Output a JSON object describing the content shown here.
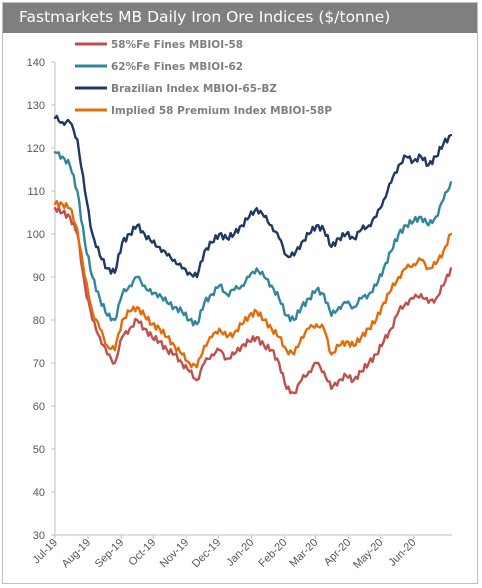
{
  "chart_data": {
    "type": "line",
    "title": "Fastmarkets MB Daily Iron Ore Indices ($/tonne)",
    "xlabel": "",
    "ylabel": "",
    "ylim": [
      30,
      140
    ],
    "yticks": [
      30,
      40,
      50,
      60,
      70,
      80,
      90,
      100,
      110,
      120,
      130,
      140
    ],
    "xlim": [
      "2019-07-01",
      "2020-07-07"
    ],
    "xticks": [
      {
        "date": "2019-07-01",
        "label": "Jul-19"
      },
      {
        "date": "2019-08-01",
        "label": "Aug-19"
      },
      {
        "date": "2019-09-01",
        "label": "Sep-19"
      },
      {
        "date": "2019-10-01",
        "label": "Oct-19"
      },
      {
        "date": "2019-11-01",
        "label": "Nov-19"
      },
      {
        "date": "2019-12-01",
        "label": "Dec-19"
      },
      {
        "date": "2020-01-01",
        "label": "Jan-20"
      },
      {
        "date": "2020-02-01",
        "label": "Feb-20"
      },
      {
        "date": "2020-03-01",
        "label": "Mar-20"
      },
      {
        "date": "2020-04-01",
        "label": "Apr-20"
      },
      {
        "date": "2020-05-01",
        "label": "May-20"
      },
      {
        "date": "2020-06-01",
        "label": "Jun-20"
      }
    ],
    "grid": false,
    "legend_position": "top-left",
    "x": [
      "2019-07-01",
      "2019-07-08",
      "2019-07-15",
      "2019-07-22",
      "2019-07-29",
      "2019-08-05",
      "2019-08-12",
      "2019-08-19",
      "2019-08-26",
      "2019-09-02",
      "2019-09-09",
      "2019-09-16",
      "2019-09-23",
      "2019-09-30",
      "2019-10-07",
      "2019-10-14",
      "2019-10-21",
      "2019-10-28",
      "2019-11-04",
      "2019-11-11",
      "2019-11-18",
      "2019-11-25",
      "2019-12-02",
      "2019-12-09",
      "2019-12-16",
      "2019-12-23",
      "2019-12-30",
      "2020-01-06",
      "2020-01-13",
      "2020-01-20",
      "2020-01-27",
      "2020-02-03",
      "2020-02-10",
      "2020-02-17",
      "2020-02-24",
      "2020-03-02",
      "2020-03-09",
      "2020-03-16",
      "2020-03-23",
      "2020-03-30",
      "2020-04-06",
      "2020-04-13",
      "2020-04-20",
      "2020-04-27",
      "2020-05-04",
      "2020-05-11",
      "2020-05-18",
      "2020-05-25",
      "2020-06-01",
      "2020-06-08",
      "2020-06-15",
      "2020-06-22",
      "2020-06-29",
      "2020-07-06"
    ],
    "series": [
      {
        "name": "58%Fe Fines MBIOI-58",
        "color": "#c0504d",
        "values": [
          106,
          105,
          104,
          100,
          88,
          80,
          76,
          72,
          70,
          76,
          78,
          80,
          78,
          76,
          75,
          73,
          72,
          70,
          68,
          66,
          70,
          72,
          73,
          71,
          72,
          74,
          75,
          76,
          74,
          73,
          70,
          64,
          63,
          66,
          68,
          70,
          68,
          64,
          66,
          67,
          66,
          68,
          70,
          72,
          75,
          78,
          82,
          84,
          85,
          86,
          84,
          85,
          88,
          92
        ]
      },
      {
        "name": "62%Fe Fines MBIOI-62",
        "color": "#31859c",
        "values": [
          119,
          118,
          116,
          110,
          98,
          90,
          85,
          81,
          80,
          86,
          88,
          90,
          88,
          86,
          86,
          84,
          83,
          82,
          80,
          79,
          84,
          86,
          88,
          86,
          87,
          88,
          90,
          92,
          90,
          88,
          85,
          81,
          80,
          83,
          85,
          87,
          86,
          81,
          83,
          84,
          83,
          85,
          86,
          88,
          92,
          96,
          100,
          102,
          103,
          104,
          102,
          104,
          108,
          112
        ]
      },
      {
        "name": "Brazilian Index MBIOI-65-BZ",
        "color": "#1f3864",
        "values": [
          127,
          126,
          126,
          122,
          110,
          100,
          95,
          92,
          91,
          98,
          100,
          102,
          100,
          98,
          97,
          95,
          94,
          92,
          91,
          90,
          96,
          98,
          100,
          99,
          100,
          102,
          104,
          106,
          104,
          102,
          99,
          95,
          95,
          98,
          100,
          102,
          101,
          97,
          99,
          100,
          99,
          101,
          102,
          104,
          108,
          112,
          116,
          118,
          117,
          118,
          116,
          118,
          121,
          123
        ]
      },
      {
        "name": "Implied 58 Premium Index MBIOI-58P",
        "color": "#e36c09",
        "values": [
          107,
          107,
          106,
          101,
          90,
          82,
          78,
          74,
          73,
          80,
          82,
          83,
          81,
          79,
          78,
          76,
          74,
          72,
          70,
          69,
          74,
          76,
          78,
          76,
          77,
          79,
          81,
          82,
          80,
          78,
          76,
          73,
          72,
          76,
          78,
          79,
          78,
          72,
          74,
          75,
          74,
          76,
          78,
          80,
          84,
          87,
          90,
          92,
          93,
          94,
          92,
          93,
          96,
          100
        ]
      }
    ]
  }
}
